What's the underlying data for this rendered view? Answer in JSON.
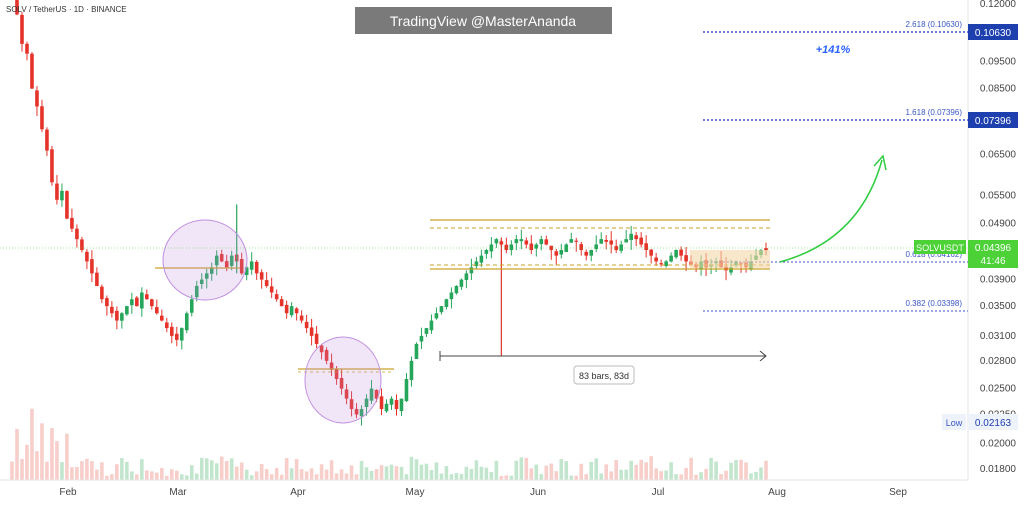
{
  "header": {
    "symbol_line": "SOLV / TetherUS · 1D · BINANCE",
    "watermark": "TradingView @MasterAnanda"
  },
  "annotations": {
    "percent_label": "+141%",
    "range_label": "83 bars, 83d",
    "price_tag_name": "SOLVUSDT",
    "price_tag_value": "0.04396",
    "price_tag_timer": "41:46",
    "low_label": "Low",
    "low_value": "0.02163",
    "fib_2618_label": "2.618 (0.10630)",
    "fib_1618_label": "1.618 (0.07396)",
    "fib_0618_label": "0.618 (0.04162)",
    "fib_0382_label": "0.382 (0.03398)",
    "fib_2618_tag": "0.10630",
    "fib_1618_tag": "0.07396"
  },
  "colors": {
    "up": "#26a65b",
    "down": "#e5332a",
    "accent_blue": "#2962ff",
    "fib_blue": "#3b57c4",
    "gold": "#c9a227",
    "purple": "#c08ee0",
    "arrow": "#2ecc40",
    "price_tag": "#4cd137"
  },
  "chart_data": {
    "type": "candlestick",
    "title": "SOLV / TetherUS · 1D · BINANCE",
    "x_ticks": [
      "Feb",
      "Mar",
      "Apr",
      "May",
      "Jun",
      "Jul",
      "Aug",
      "Sep"
    ],
    "y_ticks": [
      "0.12000",
      "0.10630",
      "0.09500",
      "0.08500",
      "0.07396",
      "0.06500",
      "0.05500",
      "0.04900",
      "0.04396",
      "0.03900",
      "0.03500",
      "0.03100",
      "0.02800",
      "0.02500",
      "0.02250",
      "0.02163",
      "0.02000",
      "0.01800"
    ],
    "y_scale": "log",
    "y_range": [
      0.0164,
      0.125
    ],
    "date_range": [
      "2025-01-20",
      "2025-09-15"
    ],
    "candles_daily": [
      0.132,
      0.115,
      0.102,
      0.098,
      0.085,
      0.079,
      0.072,
      0.066,
      0.058,
      0.054,
      0.056,
      0.05,
      0.048,
      0.046,
      0.044,
      0.042,
      0.04,
      0.038,
      0.036,
      0.035,
      0.034,
      0.033,
      0.034,
      0.035,
      0.036,
      0.035,
      0.037,
      0.036,
      0.035,
      0.034,
      0.033,
      0.032,
      0.031,
      0.0305,
      0.032,
      0.034,
      0.036,
      0.038,
      0.039,
      0.04,
      0.041,
      0.043,
      0.042,
      0.041,
      0.043,
      0.042,
      0.04,
      0.041,
      0.042,
      0.04,
      0.039,
      0.038,
      0.037,
      0.036,
      0.035,
      0.034,
      0.035,
      0.034,
      0.033,
      0.032,
      0.031,
      0.03,
      0.029,
      0.028,
      0.027,
      0.026,
      0.025,
      0.024,
      0.023,
      0.0225,
      0.023,
      0.024,
      0.025,
      0.024,
      0.023,
      0.0235,
      0.024,
      0.023,
      0.024,
      0.026,
      0.028,
      0.03,
      0.031,
      0.032,
      0.033,
      0.034,
      0.035,
      0.036,
      0.037,
      0.038,
      0.039,
      0.04,
      0.041,
      0.042,
      0.043,
      0.044,
      0.045,
      0.046,
      0.045,
      0.044,
      0.045,
      0.046,
      0.046,
      0.045,
      0.044,
      0.045,
      0.046,
      0.045,
      0.044,
      0.043,
      0.044,
      0.045,
      0.046,
      0.0455,
      0.044,
      0.043,
      0.044,
      0.045,
      0.046,
      0.0455,
      0.045,
      0.044,
      0.045,
      0.046,
      0.047,
      0.046,
      0.045,
      0.044,
      0.043,
      0.042,
      0.0415,
      0.042,
      0.043,
      0.044,
      0.043,
      0.042,
      0.0415,
      0.041,
      0.042,
      0.041,
      0.0415,
      0.042,
      0.041,
      0.0405,
      0.041,
      0.042,
      0.0415,
      0.041,
      0.042,
      0.043,
      0.044,
      0.04396
    ],
    "levels": [
      {
        "label": "2.618",
        "value": 0.1063
      },
      {
        "label": "1.618",
        "value": 0.07396
      },
      {
        "label": "0.618",
        "value": 0.04162
      },
      {
        "label": "0.382",
        "value": 0.03398
      }
    ],
    "last_price": 0.04396,
    "low": 0.02163,
    "legend": "none",
    "grid": false
  }
}
